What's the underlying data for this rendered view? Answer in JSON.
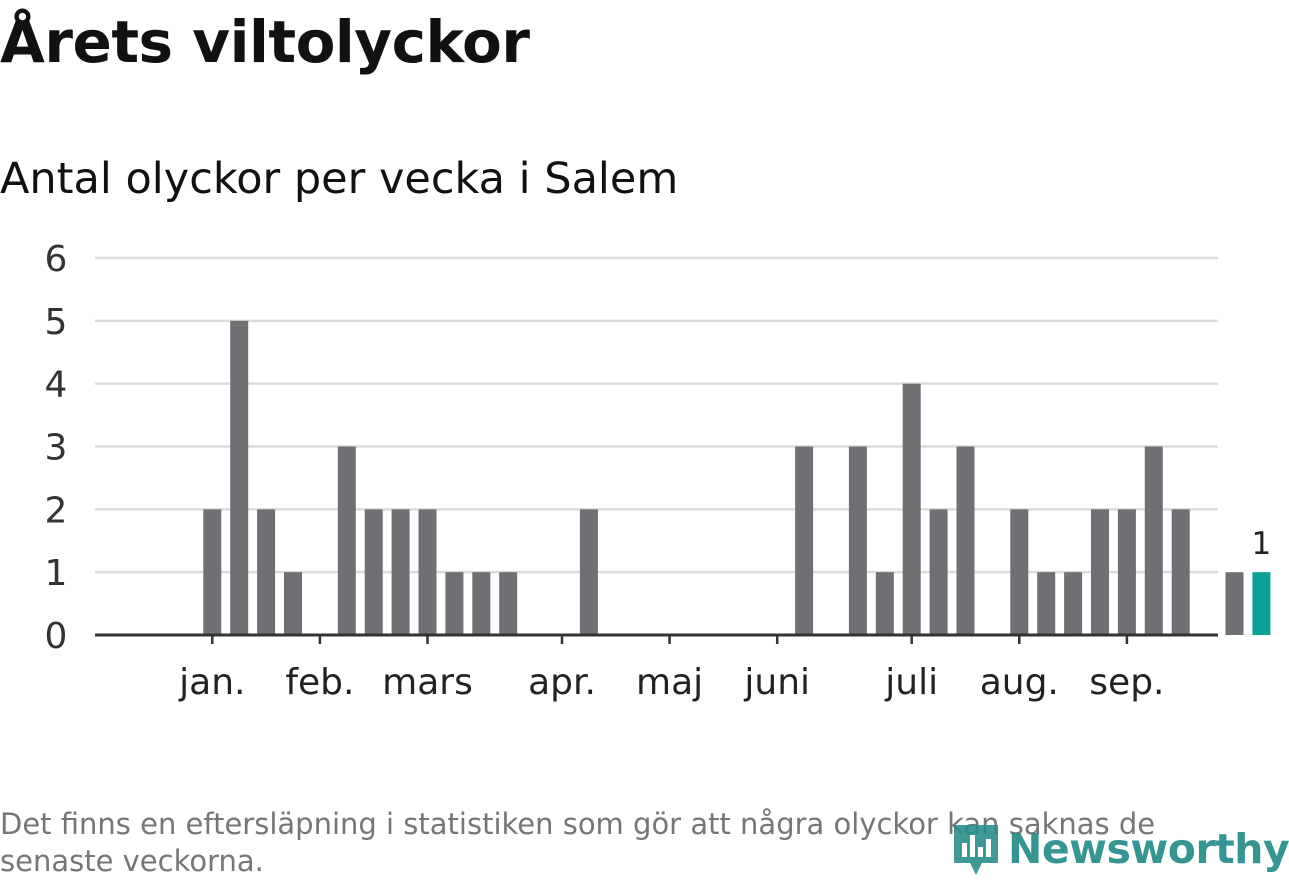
{
  "title": "Årets viltolyckor",
  "subtitle": "Antal olyckor per vecka i Salem",
  "footnote": "Det finns en eftersläpning i statistiken som gör att några olyckor kan saknas de senaste veckorna.",
  "logo": {
    "text": "Newsworthy",
    "icon": "newsworthy-logo-icon"
  },
  "colors": {
    "bar": "#706f74",
    "highlight": "#0aa196",
    "grid": "#dcdcdc",
    "axis": "#333333"
  },
  "chart_data": {
    "type": "bar",
    "title": "Antal olyckor per vecka i Salem",
    "xlabel": "",
    "ylabel": "",
    "ylim": [
      0,
      6
    ],
    "yticks": [
      0,
      1,
      2,
      3,
      4,
      5,
      6
    ],
    "weeks": [
      1,
      2,
      3,
      4,
      5,
      6,
      7,
      8,
      9,
      10,
      11,
      12,
      13,
      14,
      15,
      16,
      17,
      18,
      19,
      20,
      21,
      22,
      23,
      24,
      25,
      26,
      27,
      28,
      29,
      30,
      31,
      32,
      33,
      34,
      35,
      36,
      37,
      38,
      39,
      40,
      41,
      42
    ],
    "values": [
      0,
      0,
      2,
      5,
      2,
      1,
      0,
      3,
      2,
      2,
      2,
      1,
      1,
      1,
      0,
      0,
      2,
      0,
      0,
      0,
      0,
      0,
      0,
      0,
      3,
      0,
      3,
      1,
      4,
      2,
      3,
      0,
      2,
      1,
      1,
      2,
      2,
      3,
      2,
      0,
      1,
      1
    ],
    "highlight_index": 41,
    "highlight_label": "1",
    "month_labels": [
      {
        "label": "jan.",
        "week": 3
      },
      {
        "label": "feb.",
        "week": 7
      },
      {
        "label": "mars",
        "week": 11
      },
      {
        "label": "apr.",
        "week": 16
      },
      {
        "label": "maj",
        "week": 20
      },
      {
        "label": "juni",
        "week": 24
      },
      {
        "label": "juli",
        "week": 29
      },
      {
        "label": "aug.",
        "week": 33
      },
      {
        "label": "sep.",
        "week": 37
      }
    ]
  }
}
